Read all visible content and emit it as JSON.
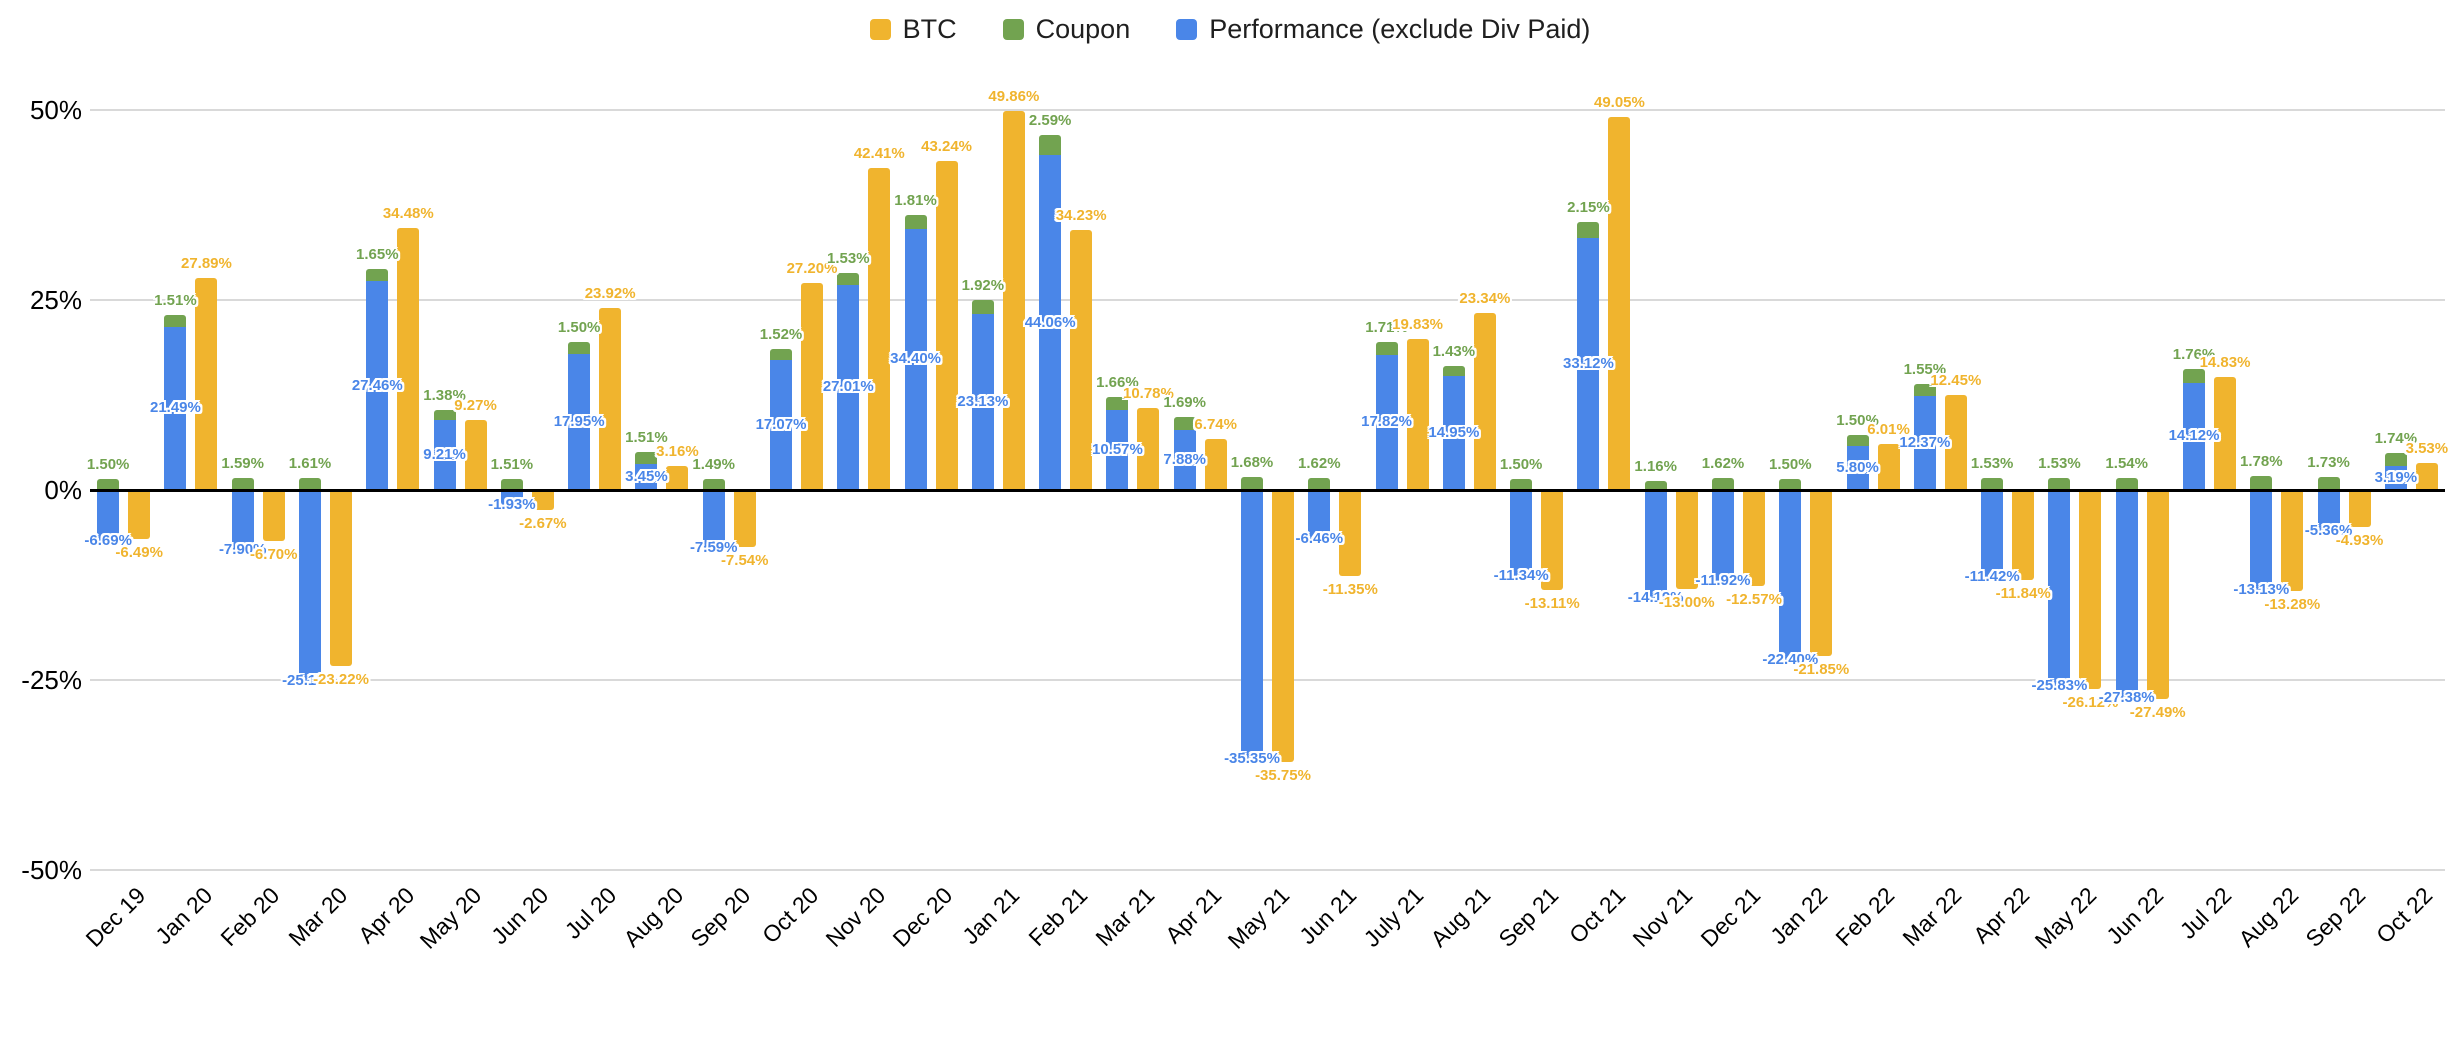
{
  "legend": [
    {
      "label": "BTC",
      "color": "#f0b42e"
    },
    {
      "label": "Coupon",
      "color": "#72a350"
    },
    {
      "label": "Performance (exclude Div Paid)",
      "color": "#4a86e8"
    }
  ],
  "y_axis": {
    "ticks": [
      {
        "label": "50%",
        "value": 50
      },
      {
        "label": "25%",
        "value": 25
      },
      {
        "label": "0%",
        "value": 0
      },
      {
        "label": "-25%",
        "value": -25
      },
      {
        "label": "-50%",
        "value": -50
      }
    ]
  },
  "chart_data": {
    "type": "bar",
    "title": "",
    "xlabel": "",
    "ylabel": "",
    "ylim": [
      -50,
      50
    ],
    "y_ticks": [
      50,
      25,
      0,
      -25,
      -50
    ],
    "grid": true,
    "legend_position": "top-center",
    "label_format": "percent_2dp",
    "stacking": "Coupon segment stacked on top of Performance bar; BTC is a separate bar in each group",
    "categories": [
      "Dec 19",
      "Jan 20",
      "Feb 20",
      "Mar 20",
      "Apr 20",
      "May 20",
      "Jun 20",
      "Jul 20",
      "Aug 20",
      "Sep 20",
      "Oct 20",
      "Nov 20",
      "Dec 20",
      "Jan 21",
      "Feb 21",
      "Mar 21",
      "Apr 21",
      "May 21",
      "Jun 21",
      "July 21",
      "Aug 21",
      "Sep 21",
      "Oct 21",
      "Nov 21",
      "Dec 21",
      "Jan 22",
      "Feb 22",
      "Mar 22",
      "Apr 22",
      "May 22",
      "Jun 22",
      "Jul 22",
      "Aug 22",
      "Sep 22",
      "Oct 22"
    ],
    "series": [
      {
        "name": "BTC",
        "color": "#f0b42e",
        "values": [
          -6.49,
          27.89,
          -6.7,
          -23.22,
          34.48,
          9.27,
          -2.67,
          23.92,
          3.16,
          -7.54,
          27.2,
          42.41,
          43.24,
          49.86,
          34.23,
          10.78,
          6.74,
          -35.75,
          -11.35,
          19.83,
          23.34,
          -13.11,
          49.05,
          -13.0,
          -12.57,
          -21.85,
          6.01,
          12.45,
          -11.84,
          -26.12,
          -27.49,
          14.83,
          -13.28,
          -4.93,
          3.53
        ]
      },
      {
        "name": "Coupon",
        "color": "#72a350",
        "values": [
          1.5,
          1.51,
          1.59,
          1.61,
          1.65,
          1.38,
          1.51,
          1.5,
          1.51,
          1.49,
          1.52,
          1.53,
          1.81,
          1.92,
          2.59,
          1.66,
          1.69,
          1.68,
          1.62,
          1.71,
          1.43,
          1.5,
          2.15,
          1.16,
          1.62,
          1.5,
          1.5,
          1.55,
          1.53,
          1.53,
          1.54,
          1.76,
          1.78,
          1.73,
          1.74
        ]
      },
      {
        "name": "Performance (exclude Div Paid)",
        "color": "#4a86e8",
        "values": [
          -6.69,
          21.49,
          -7.9,
          -25.15,
          27.46,
          9.21,
          -1.93,
          17.95,
          3.45,
          -7.59,
          17.07,
          27.01,
          34.4,
          23.13,
          44.06,
          10.57,
          7.88,
          -35.35,
          -6.46,
          17.82,
          14.95,
          -11.34,
          33.12,
          -14.19,
          -11.92,
          -22.4,
          5.8,
          12.37,
          -11.42,
          -25.83,
          -27.38,
          14.12,
          -13.13,
          -5.36,
          3.19
        ]
      }
    ]
  }
}
